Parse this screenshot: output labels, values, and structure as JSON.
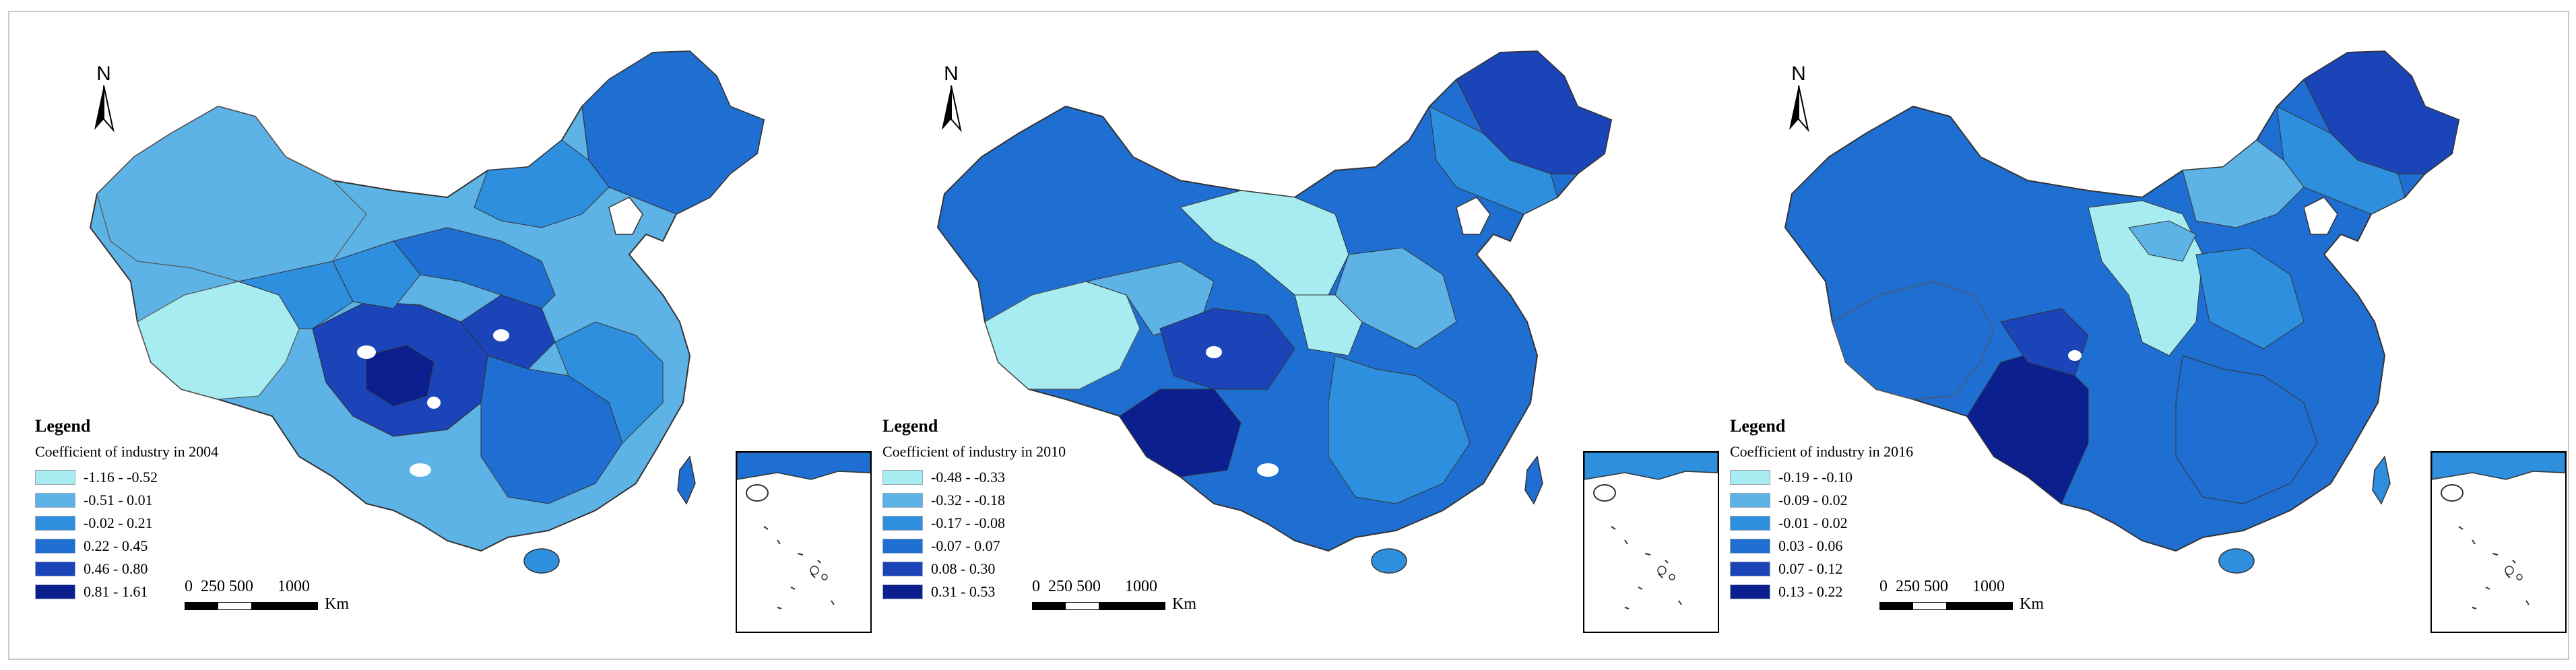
{
  "panels": [
    {
      "north_label": "N",
      "legend_title": "Legend",
      "legend_subtitle": "Coefficient of industry in 2004",
      "classes": [
        {
          "label": "-1.16 - -0.52",
          "color": "#a6ecf0"
        },
        {
          "label": "-0.51 - 0.01",
          "color": "#5db3e6"
        },
        {
          "label": "-0.02 - 0.21",
          "color": "#2d8fde"
        },
        {
          "label": "0.22 - 0.45",
          "color": "#1f6fd2"
        },
        {
          "label": "0.46 - 0.80",
          "color": "#1a44b8"
        },
        {
          "label": "0.81 - 1.61",
          "color": "#0b1f8f"
        }
      ],
      "scale": {
        "ticks": "0  250 500      1000",
        "unit": "Km"
      }
    },
    {
      "north_label": "N",
      "legend_title": "Legend",
      "legend_subtitle": "Coefficient of industry in 2010",
      "classes": [
        {
          "label": "-0.48 - -0.33",
          "color": "#a6ecf0"
        },
        {
          "label": "-0.32 - -0.18",
          "color": "#5db3e6"
        },
        {
          "label": "-0.17 - -0.08",
          "color": "#2d8fde"
        },
        {
          "label": "-0.07 - 0.07",
          "color": "#1f6fd2"
        },
        {
          "label": "0.08 - 0.30",
          "color": "#1a44b8"
        },
        {
          "label": "0.31 - 0.53",
          "color": "#0b1f8f"
        }
      ],
      "scale": {
        "ticks": "0  250 500      1000",
        "unit": "Km"
      }
    },
    {
      "north_label": "N",
      "legend_title": "Legend",
      "legend_subtitle": "Coefficient of industry in 2016",
      "classes": [
        {
          "label": "-0.19 - -0.10",
          "color": "#a6ecf0"
        },
        {
          "label": "-0.09 - 0.02",
          "color": "#5db3e6"
        },
        {
          "label": "-0.01 - 0.02",
          "color": "#2d8fde"
        },
        {
          "label": "0.03 - 0.06",
          "color": "#1f6fd2"
        },
        {
          "label": "0.07 - 0.12",
          "color": "#1a44b8"
        },
        {
          "label": "0.13 - 0.22",
          "color": "#0b1f8f"
        }
      ],
      "scale": {
        "ticks": "0  250 500      1000",
        "unit": "Km"
      }
    }
  ]
}
